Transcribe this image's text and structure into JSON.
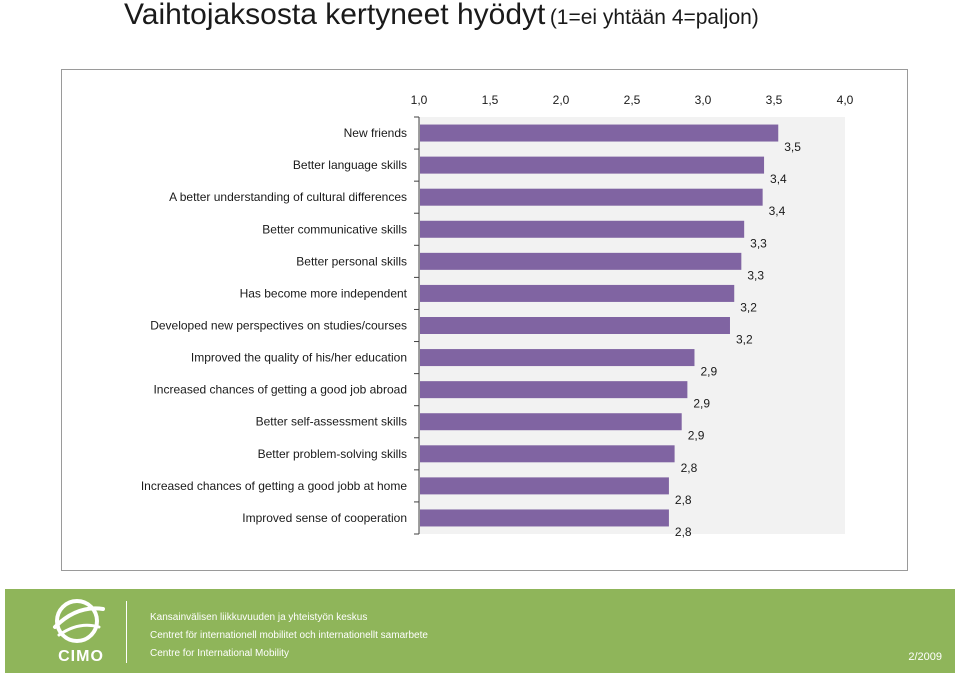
{
  "title": {
    "main": "Vaihtojaksosta kertyneet hyödyt",
    "scale": "(1=ei yhtään  4=paljon)"
  },
  "chart_data": {
    "type": "bar",
    "orientation": "horizontal",
    "xlim": [
      1.0,
      4.0
    ],
    "tick_labels": [
      "1,0",
      "1,5",
      "2,0",
      "2,5",
      "3,0",
      "3,5",
      "4,0"
    ],
    "tick_values": [
      1.0,
      1.5,
      2.0,
      2.5,
      3.0,
      3.5,
      4.0
    ],
    "categories": [
      "New friends",
      "Better language skills",
      "A better understanding of cultural differences",
      "Better communicative skills",
      "Better personal skills",
      "Has become more independent",
      "Developed new perspectives on studies/courses",
      "Improved the quality of his/her education",
      "Increased chances of getting a good job abroad",
      "Better self-assessment skills",
      "Better problem-solving skills",
      "Increased chances of getting a good jobb at home",
      "Improved sense of cooperation"
    ],
    "values": [
      3.53,
      3.43,
      3.42,
      3.29,
      3.27,
      3.22,
      3.19,
      2.94,
      2.89,
      2.85,
      2.8,
      2.76,
      2.76
    ],
    "value_labels": [
      "3,5",
      "3,4",
      "3,4",
      "3,3",
      "3,3",
      "3,2",
      "3,2",
      "2,9",
      "2,9",
      "2,9",
      "2,8",
      "2,8",
      "2,8"
    ],
    "bar_color": "#8064a2",
    "plot_background": "#f2f2f2",
    "grid": false,
    "axis_position": "top"
  },
  "footer": {
    "logo_text": "CIMO",
    "org_lines": [
      "Kansainvälisen liikkuvuuden ja yhteistyön keskus",
      "Centret för internationell mobilitet och internationellt samarbete",
      "Centre for International Mobility"
    ],
    "page": "2/2009",
    "background": "#8fb55a"
  }
}
